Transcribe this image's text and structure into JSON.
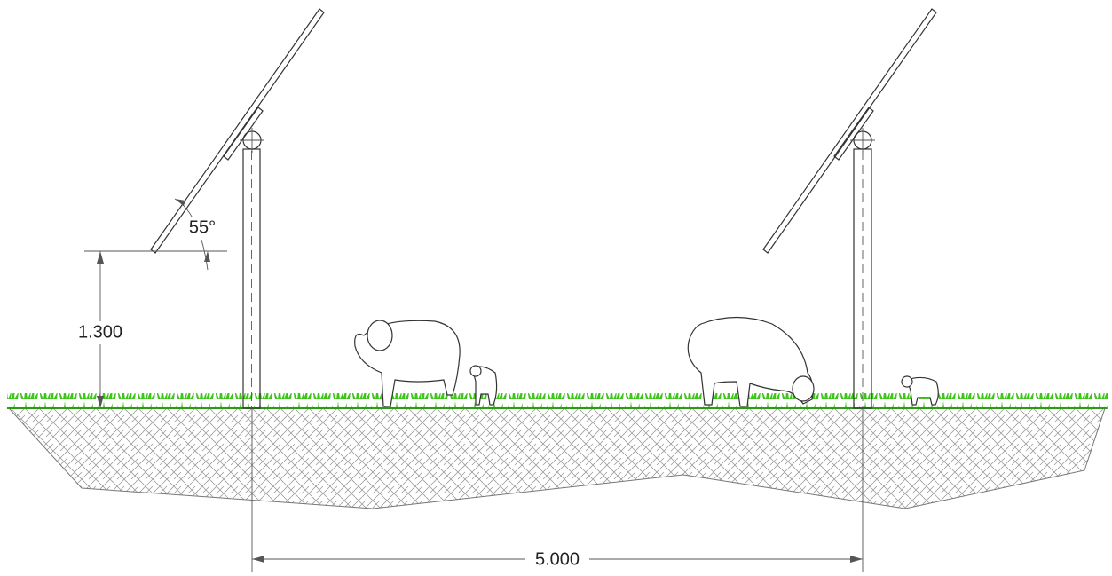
{
  "labels": {
    "angle": "55°",
    "height": "1.300",
    "spacing": "5.000"
  }
}
